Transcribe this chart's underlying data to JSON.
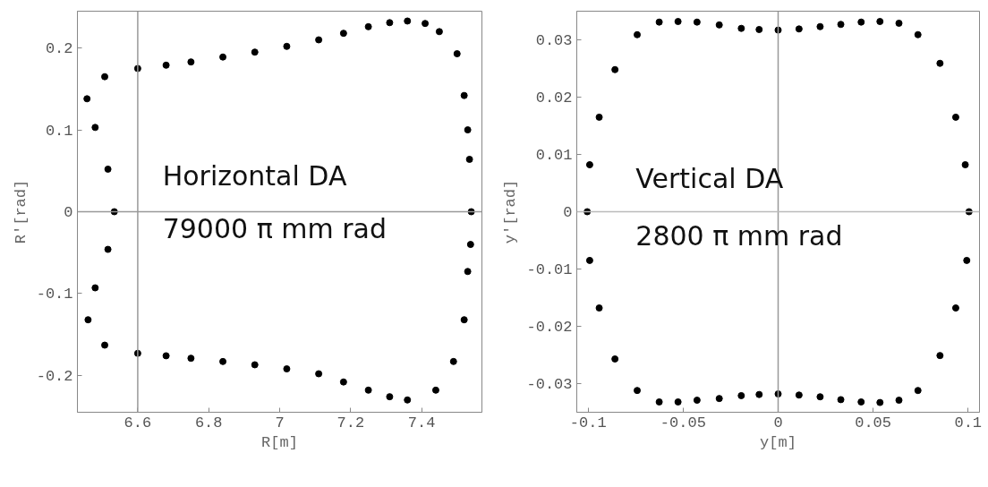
{
  "chart_data": [
    {
      "type": "scatter",
      "xlabel": "R[m]",
      "ylabel": "R'[rad]",
      "xlim": [
        6.43,
        7.57
      ],
      "ylim": [
        -0.245,
        0.245
      ],
      "xticks": [
        6.6,
        6.8,
        7,
        7.2,
        7.4
      ],
      "yticks": [
        -0.2,
        -0.1,
        0,
        0.1,
        0.2
      ],
      "grid": false,
      "marker": "circle",
      "ref_lines": [
        {
          "axis": "x",
          "value": 6.6,
          "color": "#999999"
        },
        {
          "axis": "y",
          "value": 0,
          "color": "#999999"
        }
      ],
      "annotations": [
        "Horizontal DA",
        "79000 π mm rad"
      ],
      "series": [
        {
          "color": "#000000",
          "x": [
            6.457,
            6.507,
            6.6,
            6.68,
            6.75,
            6.84,
            6.93,
            7.02,
            7.11,
            7.18,
            7.25,
            7.31,
            7.36,
            7.41,
            7.45,
            7.5,
            7.52,
            7.53,
            7.535,
            7.54,
            7.538,
            7.53,
            7.52,
            7.49,
            7.44,
            7.36,
            7.31,
            7.25,
            7.18,
            7.11,
            7.02,
            6.93,
            6.84,
            6.75,
            6.68,
            6.6,
            6.507,
            6.46,
            6.48,
            6.516,
            6.534,
            6.516,
            6.48
          ],
          "values": [
            0.138,
            0.165,
            0.175,
            0.179,
            0.183,
            0.189,
            0.195,
            0.202,
            0.21,
            0.218,
            0.226,
            0.231,
            0.233,
            0.23,
            0.22,
            0.193,
            0.142,
            0.1,
            0.064,
            0,
            -0.04,
            -0.073,
            -0.132,
            -0.183,
            -0.218,
            -0.23,
            -0.226,
            -0.218,
            -0.208,
            -0.198,
            -0.192,
            -0.187,
            -0.183,
            -0.179,
            -0.176,
            -0.173,
            -0.163,
            -0.132,
            -0.093,
            -0.046,
            0,
            0.052,
            0.103
          ]
        }
      ]
    },
    {
      "type": "scatter",
      "xlabel": "y[m]",
      "ylabel": "y'[rad]",
      "xlim": [
        -0.106,
        0.106
      ],
      "ylim": [
        -0.035,
        0.035
      ],
      "xticks": [
        -0.1,
        -0.05,
        0,
        0.05,
        0.1
      ],
      "yticks": [
        -0.03,
        -0.02,
        -0.01,
        0,
        0.01,
        0.02,
        0.03
      ],
      "grid": false,
      "marker": "circle",
      "ref_lines": [
        {
          "axis": "x",
          "value": 0,
          "color": "#999999"
        },
        {
          "axis": "y",
          "value": 0,
          "color": "#bbbbbb"
        }
      ],
      "annotations": [
        "Vertical DA",
        "2800 π mm rad"
      ],
      "series": [
        {
          "color": "#000000",
          "x": [
            -0.0626,
            -0.0527,
            -0.0427,
            -0.031,
            -0.0194,
            -0.01,
            0,
            0.011,
            0.0221,
            0.033,
            0.0437,
            0.0536,
            0.0636,
            0.0736,
            0.0852,
            0.0935,
            0.0985,
            0.1005,
            0.0993,
            0.0935,
            0.0852,
            0.0736,
            0.0636,
            0.0536,
            0.0437,
            0.033,
            0.0221,
            0.011,
            0,
            -0.01,
            -0.0194,
            -0.031,
            -0.0427,
            -0.0527,
            -0.0626,
            -0.0742,
            -0.0859,
            -0.0942,
            -0.0992,
            -0.1005,
            -0.0992,
            -0.0942,
            -0.0859,
            -0.0742
          ],
          "values": [
            0.0331,
            0.0332,
            0.0331,
            0.0326,
            0.032,
            0.0318,
            0.0317,
            0.0319,
            0.0323,
            0.0327,
            0.0331,
            0.0332,
            0.0329,
            0.0309,
            0.0259,
            0.0165,
            0.0082,
            0,
            -0.0085,
            -0.0168,
            -0.0251,
            -0.0312,
            -0.0329,
            -0.0333,
            -0.0332,
            -0.0328,
            -0.0323,
            -0.032,
            -0.0318,
            -0.0319,
            -0.0321,
            -0.0326,
            -0.0329,
            -0.0332,
            -0.0332,
            -0.0312,
            -0.0257,
            -0.0168,
            -0.0085,
            0,
            0.0082,
            0.0165,
            0.0248,
            0.0309
          ]
        }
      ]
    }
  ]
}
